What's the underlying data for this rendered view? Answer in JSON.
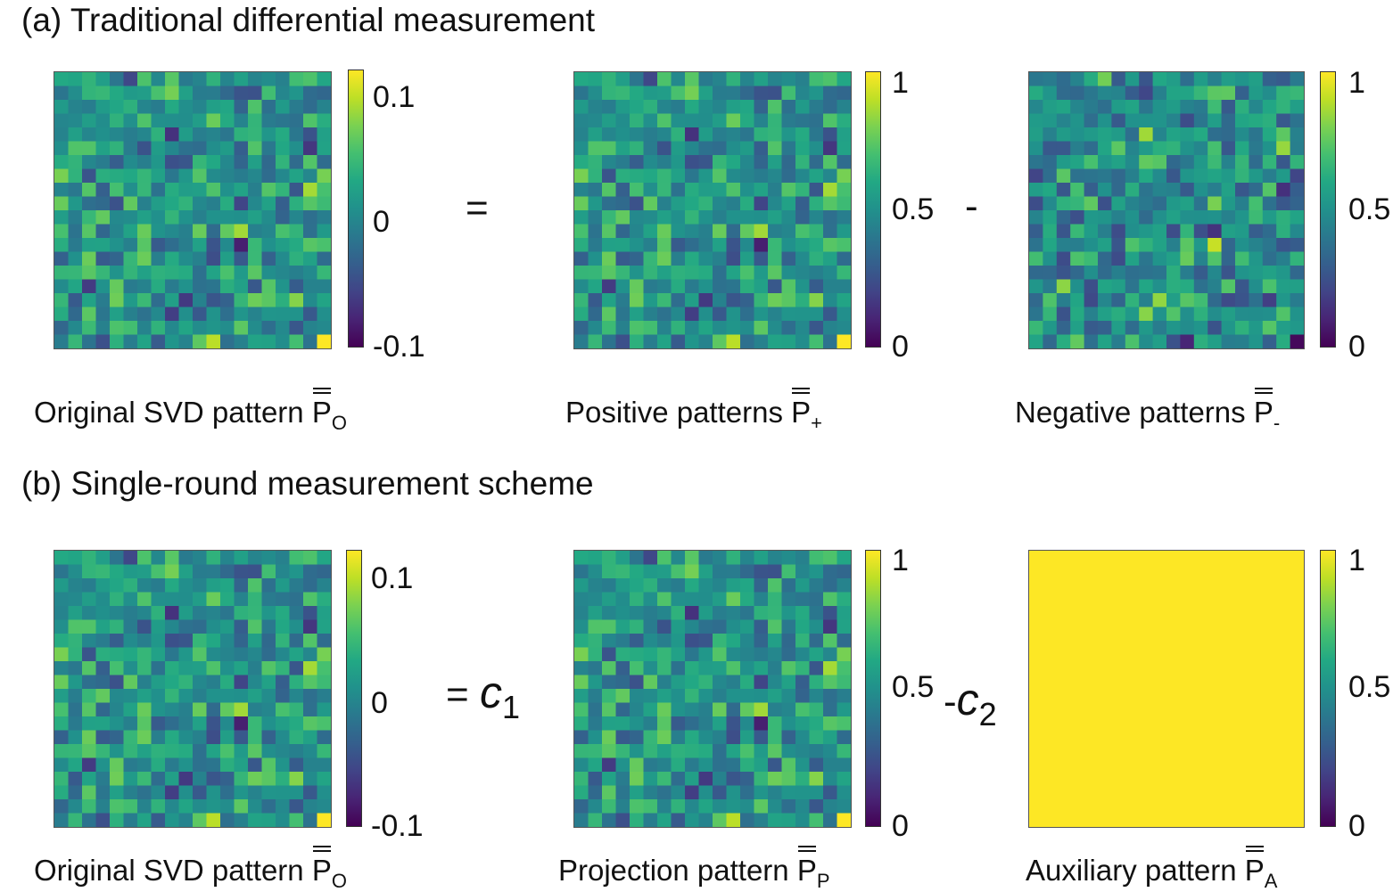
{
  "section_a": {
    "title": "(a) Traditional differential measurement",
    "panels": [
      {
        "caption_text": "Original SVD pattern ",
        "symbol": "P",
        "subscript": "O",
        "colorbar_ticks": [
          "0.1",
          "0",
          "-0.1"
        ],
        "colorbar_tick_values": [
          0.1,
          0,
          -0.1
        ],
        "range": [
          -0.12,
          0.12
        ]
      },
      {
        "caption_text": "Positive patterns ",
        "symbol": "P",
        "subscript": "+",
        "colorbar_ticks": [
          "1",
          "0.5",
          "0"
        ],
        "colorbar_tick_values": [
          1,
          0.5,
          0
        ],
        "range": [
          0,
          1
        ]
      },
      {
        "caption_text": "Negative patterns ",
        "symbol": "P",
        "subscript": "-",
        "colorbar_ticks": [
          "1",
          "0.5",
          "0"
        ],
        "colorbar_tick_values": [
          1,
          0.5,
          0
        ],
        "range": [
          0,
          1
        ]
      }
    ],
    "operators": [
      "=",
      "-"
    ]
  },
  "section_b": {
    "title": "(b) Single-round  measurement scheme",
    "panels": [
      {
        "caption_text": "Original SVD pattern ",
        "symbol": "P",
        "subscript": "O",
        "colorbar_ticks": [
          "0.1",
          "0",
          "-0.1"
        ],
        "colorbar_tick_values": [
          0.1,
          0,
          -0.1
        ],
        "range": [
          -0.12,
          0.12
        ]
      },
      {
        "caption_text": "Projection pattern ",
        "symbol": "P",
        "subscript": "P",
        "colorbar_ticks": [
          "1",
          "0.5",
          "0"
        ],
        "colorbar_tick_values": [
          1,
          0.5,
          0
        ],
        "range": [
          0,
          1
        ]
      },
      {
        "caption_text": "Auxiliary pattern ",
        "symbol": "P",
        "subscript": "A",
        "colorbar_ticks": [
          "1",
          "0.5",
          "0"
        ],
        "colorbar_tick_values": [
          1,
          0.5,
          0
        ],
        "range": [
          0,
          1
        ]
      }
    ],
    "operators": {
      "eq": "=",
      "c1": "c",
      "c1_sub": "1",
      "minus": "-",
      "c2": "c",
      "c2_sub": "2"
    }
  },
  "heatmap": {
    "grid_size": 20,
    "colormap": [
      "#440154",
      "#482475",
      "#414487",
      "#355f8d",
      "#2a788e",
      "#21918c",
      "#22a884",
      "#44bf70",
      "#7ad151",
      "#bddf26",
      "#fde725"
    ],
    "uniform_color": "#fde725"
  }
}
